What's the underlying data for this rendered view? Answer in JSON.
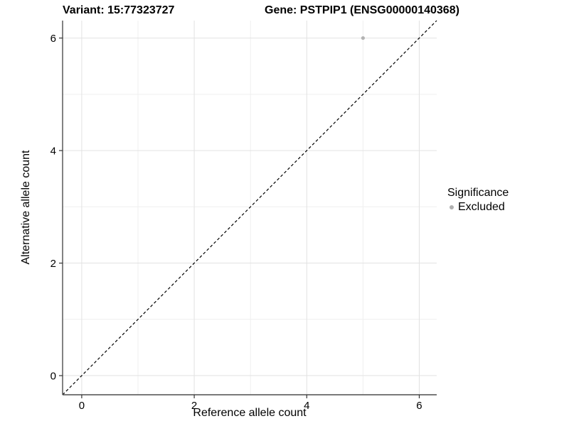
{
  "titles": {
    "variant": "Variant: 15:77323727",
    "gene": "Gene: PSTPIP1 (ENSG00000140368)"
  },
  "chart_data": {
    "type": "scatter",
    "title": "Variant: 15:77323727  /  Gene: PSTPIP1 (ENSG00000140368)",
    "xlabel": "Reference allele count",
    "ylabel": "Alternative allele count",
    "x_range": [
      -0.34,
      6.31
    ],
    "y_range": [
      -0.34,
      6.31
    ],
    "x_major_ticks": [
      0,
      2,
      4,
      6
    ],
    "x_minor_ticks": [
      1,
      3,
      5
    ],
    "y_major_ticks": [
      0,
      2,
      4,
      6
    ],
    "y_minor_ticks": [
      1,
      3,
      5
    ],
    "grid": true,
    "points": [
      {
        "x": 5,
        "y": 6,
        "series": "Excluded"
      }
    ],
    "reference_line": {
      "type": "diagonal",
      "slope": 1,
      "intercept": 0,
      "style": "dashed"
    },
    "legend": {
      "title": "Significance",
      "position": "right",
      "entries": [
        {
          "label": "Excluded",
          "color": "#b0b0b0"
        }
      ]
    }
  },
  "colors": {
    "background": "#ffffff",
    "grid_major": "#e2e2e2",
    "grid_minor": "#efefef",
    "axis_line": "#4d4d4d",
    "tick": "#333333",
    "reference_line": "#000000",
    "point": "#b3b3b3",
    "text": "#000000"
  }
}
